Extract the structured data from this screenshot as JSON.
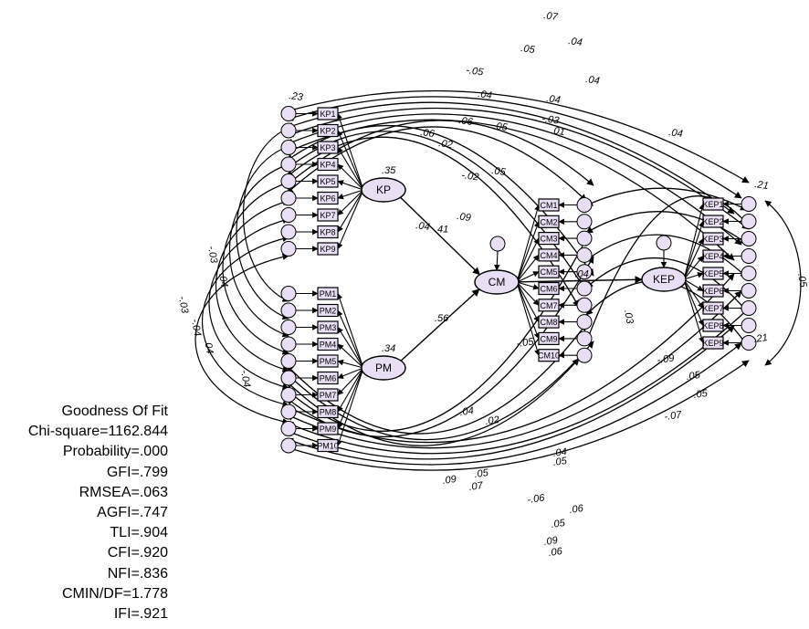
{
  "goodness_of_fit": {
    "title": "Goodness Of Fit",
    "lines": [
      "Chi-square=1162.844",
      "Probability=.000",
      "GFI=.799",
      "RMSEA=.063",
      "AGFI=.747",
      "TLI=.904",
      "CFI=.920",
      "NFI=.836",
      "CMIN/DF=1.778",
      "IFI=.921"
    ]
  },
  "latent_variables": [
    {
      "id": "KP",
      "label": "KP",
      "r2": ".35"
    },
    {
      "id": "PM",
      "label": "PM",
      "r2": ".34"
    },
    {
      "id": "CM",
      "label": "CM",
      "r2": ""
    },
    {
      "id": "KEP",
      "label": "KEP",
      "r2": ""
    }
  ],
  "paths": [
    {
      "from": "PM",
      "to": "CM",
      "coef": ".56"
    },
    {
      "from": "KP",
      "to": "CM",
      "coef": ".41"
    },
    {
      "from": "CM",
      "to": "KEP",
      "coef": ".04"
    }
  ],
  "indicator_groups": [
    {
      "latent": "KP",
      "prefix": "KP",
      "count": 9
    },
    {
      "latent": "PM",
      "prefix": "PM",
      "count": 10
    },
    {
      "latent": "CM",
      "prefix": "CM",
      "count": 10
    },
    {
      "latent": "KEP",
      "prefix": "KEP",
      "count": 9
    }
  ],
  "covariance_labels_top": [
    ".07",
    ".04",
    ".05",
    ".04",
    "-.05",
    ".04",
    ".04",
    ".06",
    ".05",
    "-.03",
    ".06",
    ".01",
    ".02",
    ".04",
    "-.02",
    ".05",
    ".23",
    ".04",
    ".09",
    ".21"
  ],
  "covariance_labels_bottom": [
    ".04",
    ".05",
    ".02",
    ".04",
    "-.05",
    ".05",
    ".05",
    ".09",
    ".07",
    "-.06",
    ".06",
    ".05",
    ".09",
    ".06",
    "-.07",
    ".05",
    "-.09",
    ".21"
  ],
  "covariance_labels_side": [
    "-.03",
    "-.04",
    ".04",
    "-.03",
    ".04",
    "-.04",
    ".03",
    ".05"
  ]
}
